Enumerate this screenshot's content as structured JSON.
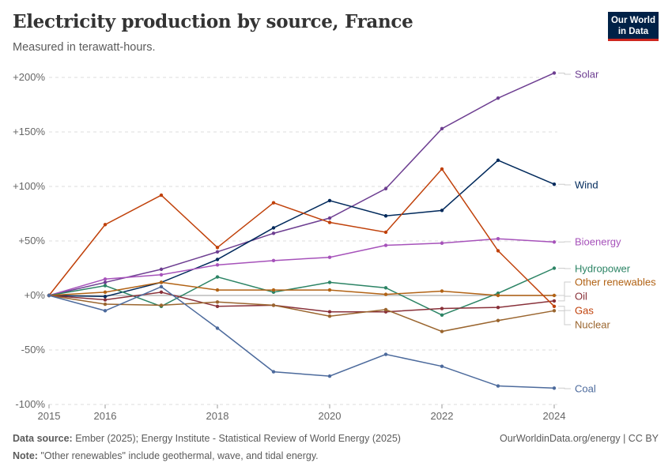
{
  "header": {
    "title": "Electricity production by source, France",
    "subtitle": "Measured in terawatt-hours.",
    "logo": "Our World in Data"
  },
  "footer": {
    "source_label": "Data source:",
    "source": "Ember (2025); Energy Institute - Statistical Review of World Energy (2025)",
    "credit": "OurWorldinData.org/energy | CC BY",
    "note_label": "Note:",
    "note": "\"Other renewables\" include geothermal, wave, and tidal energy."
  },
  "chart_data": {
    "type": "line",
    "title": "Electricity production by source, France",
    "subtitle": "Measured in terawatt-hours.",
    "x": [
      2015,
      2016,
      2017,
      2018,
      2019,
      2020,
      2021,
      2022,
      2023,
      2024
    ],
    "xticks": [
      "2015",
      "2016",
      "2018",
      "2020",
      "2022",
      "2024"
    ],
    "yticks": [
      "-100%",
      "-50%",
      "+0%",
      "+50%",
      "+100%",
      "+150%",
      "+200%"
    ],
    "ylim": [
      -100,
      210
    ],
    "xlim": [
      2015,
      2024
    ],
    "grid": "horizontal dashed",
    "legend": "right, labels at line ends",
    "series": [
      {
        "name": "Solar",
        "color": "#6d3e91",
        "values": [
          0,
          12,
          24,
          40,
          57,
          71,
          98,
          153,
          181,
          204
        ]
      },
      {
        "name": "Wind",
        "color": "#00295b",
        "values": [
          0,
          -1,
          12,
          33,
          62,
          87,
          73,
          78,
          124,
          102
        ]
      },
      {
        "name": "Bioenergy",
        "color": "#a652ba",
        "values": [
          0,
          15,
          19,
          28,
          32,
          35,
          46,
          48,
          52,
          49
        ]
      },
      {
        "name": "Hydropower",
        "color": "#2c8465",
        "values": [
          0,
          9,
          -10,
          17,
          3,
          12,
          7,
          -18,
          2,
          25
        ]
      },
      {
        "name": "Other renewables",
        "color": "#b16214",
        "values": [
          0,
          3,
          12,
          5,
          5,
          5,
          1,
          4,
          0,
          0
        ]
      },
      {
        "name": "Oil",
        "color": "#883039",
        "values": [
          0,
          -4,
          3,
          -10,
          -9,
          -15,
          -15,
          -12,
          -11,
          -5
        ]
      },
      {
        "name": "Gas",
        "color": "#c0410a",
        "values": [
          0,
          65,
          92,
          44,
          85,
          67,
          58,
          116,
          41,
          -10
        ]
      },
      {
        "name": "Nuclear",
        "color": "#9a652e",
        "values": [
          0,
          -8,
          -9,
          -6,
          -9,
          -19,
          -13,
          -33,
          -23,
          -14
        ]
      },
      {
        "name": "Coal",
        "color": "#4c6a9c",
        "values": [
          0,
          -14,
          8,
          -30,
          -70,
          -74,
          -54,
          -65,
          -83,
          -85
        ]
      }
    ]
  }
}
